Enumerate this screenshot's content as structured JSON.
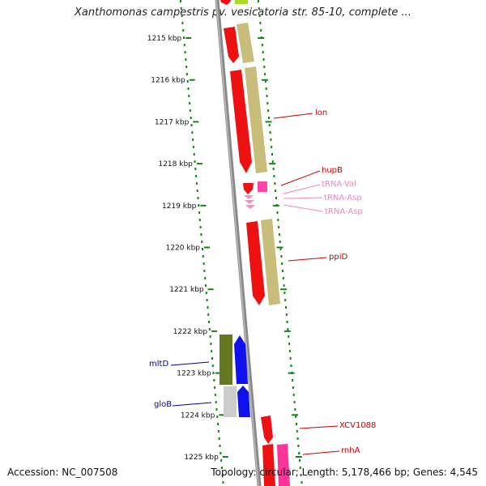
{
  "title": "Xanthomonas campestris pv. vesicatoria str. 85-10, complete ...",
  "footer": {
    "accession": "Accession: NC_007508",
    "topology": "Topology: circular; Length: 5,178,466 bp; Genes: 4,545"
  },
  "scale": {
    "unit": "kbp",
    "ticks": [
      "1215 kbp",
      "1216 kbp",
      "1217 kbp",
      "1218 kbp",
      "1219 kbp",
      "1220 kbp",
      "1221 kbp",
      "1222 kbp",
      "1223 kbp",
      "1224 kbp",
      "1225 kbp"
    ]
  },
  "genes": [
    {
      "name": "lon",
      "color": "#cc0000"
    },
    {
      "name": "hupB",
      "color": "#cc0000"
    },
    {
      "name": "tRNA-Val",
      "color": "#ee88bb"
    },
    {
      "name": "tRNA-Asp",
      "color": "#ee88bb"
    },
    {
      "name": "tRNA-Asp",
      "color": "#ee88bb"
    },
    {
      "name": "ppiD",
      "color": "#cc0000"
    },
    {
      "name": "mltD",
      "color": "#000099"
    },
    {
      "name": "gloB",
      "color": "#000099"
    },
    {
      "name": "XCV1088",
      "color": "#cc0000"
    },
    {
      "name": "rnhA",
      "color": "#cc0000"
    }
  ],
  "colors": {
    "backbone": "#888888",
    "scale_dots": "#118811",
    "cds_forward": "#ee1111",
    "cds_shadow": "#c8bd7a",
    "trna": "#ff66bb",
    "blue_cds": "#1111ee",
    "olive_cds": "#667722"
  }
}
